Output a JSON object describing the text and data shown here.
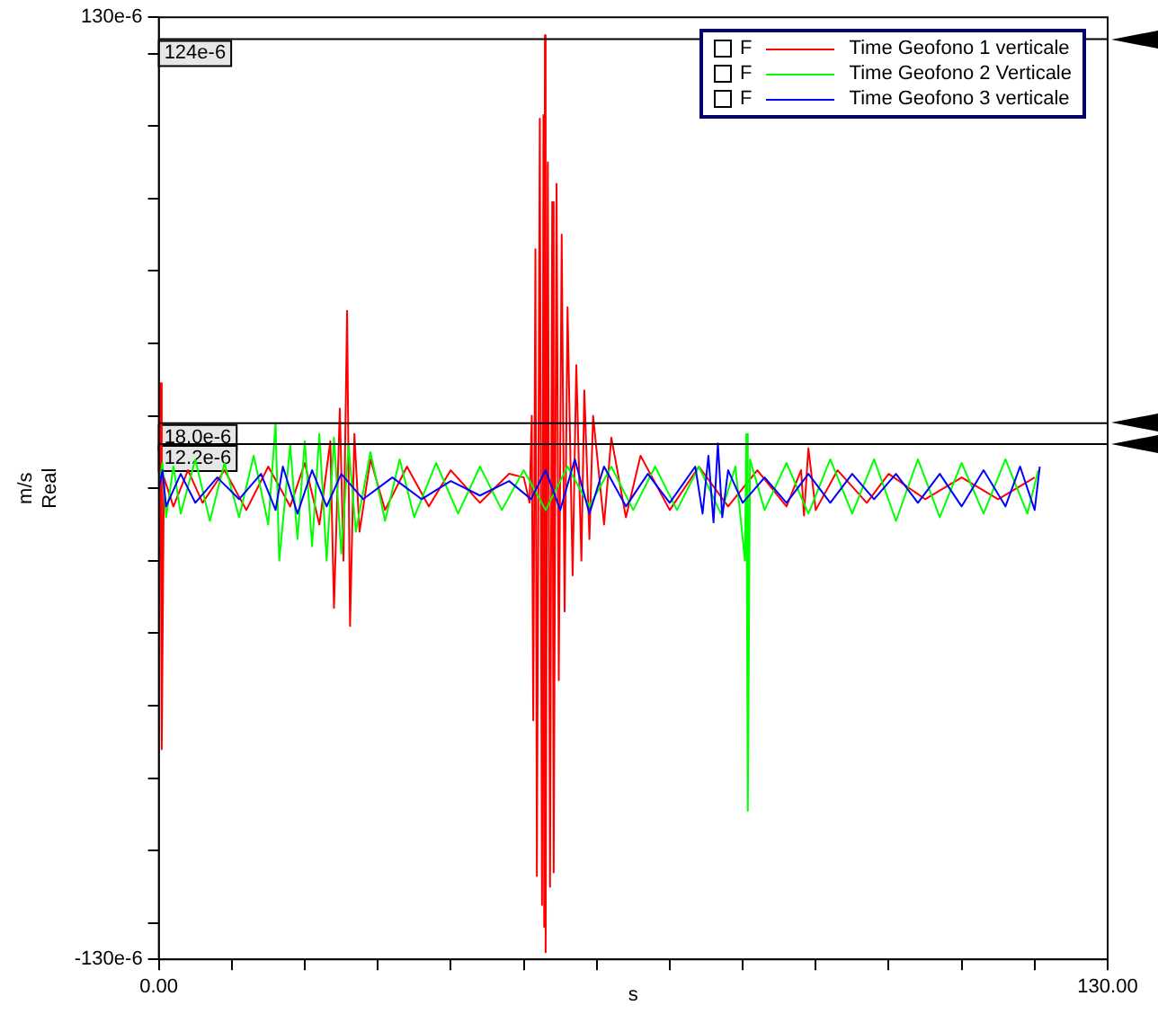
{
  "chart_data": {
    "type": "line",
    "xlabel": "s",
    "ylabel": "m/s\nReal",
    "xlim": [
      0,
      130
    ],
    "ylim": [
      -0.00013,
      0.00013
    ],
    "xticks": [
      {
        "value": 0,
        "label": "0.00"
      },
      {
        "value": 10,
        "label": null
      },
      {
        "value": 20,
        "label": null
      },
      {
        "value": 30,
        "label": null
      },
      {
        "value": 40,
        "label": null
      },
      {
        "value": 50,
        "label": null
      },
      {
        "value": 60,
        "label": null
      },
      {
        "value": 70,
        "label": null
      },
      {
        "value": 80,
        "label": null
      },
      {
        "value": 90,
        "label": null
      },
      {
        "value": 100,
        "label": null
      },
      {
        "value": 110,
        "label": null
      },
      {
        "value": 120,
        "label": null
      },
      {
        "value": 130,
        "label": "130.00"
      }
    ],
    "yticks": [
      {
        "value": -0.00013,
        "label": "-130e-6"
      },
      {
        "value": -0.00012,
        "label": null
      },
      {
        "value": -0.0001,
        "label": null
      },
      {
        "value": -8e-05,
        "label": null
      },
      {
        "value": -6e-05,
        "label": null
      },
      {
        "value": -4e-05,
        "label": null
      },
      {
        "value": -2e-05,
        "label": null
      },
      {
        "value": 0,
        "label": null
      },
      {
        "value": 2e-05,
        "label": null
      },
      {
        "value": 4e-05,
        "label": null
      },
      {
        "value": 6e-05,
        "label": null
      },
      {
        "value": 8e-05,
        "label": null
      },
      {
        "value": 0.0001,
        "label": null
      },
      {
        "value": 0.00012,
        "label": null
      },
      {
        "value": 0.00013,
        "label": "130e-6"
      }
    ],
    "legend": "top right",
    "line_style": "solid",
    "annotations": [
      "F",
      "F",
      "F"
    ],
    "ref_lines": [
      {
        "axis": "y",
        "value": 0.000124,
        "label": "124e-6",
        "color": "#000000"
      },
      {
        "axis": "y",
        "value": 1.8e-05,
        "label": "18.0e-6",
        "color": "#000000"
      },
      {
        "axis": "y",
        "value": 1.22e-05,
        "label": "12.2e-6",
        "color": "#000000"
      }
    ],
    "series": [
      {
        "name": "Time Geofono 1 verticale",
        "color": "#ff0000",
        "x": [
          0,
          0.2,
          0.4,
          0.7,
          2,
          4,
          6,
          9,
          12,
          15,
          18,
          20,
          22,
          23.5,
          24,
          24.8,
          25.3,
          25.8,
          26.2,
          26.8,
          27.5,
          29,
          31,
          34,
          37,
          40,
          44,
          48,
          50,
          50.8,
          51.1,
          51.3,
          51.6,
          51.8,
          52.2,
          52.5,
          52.7,
          52.8,
          52.9,
          53.0,
          53.3,
          53.6,
          53.9,
          54.1,
          54.5,
          54.8,
          55.2,
          55.6,
          56.0,
          56.7,
          57.2,
          57.9,
          58.3,
          59,
          59.5,
          61,
          62,
          64,
          66,
          70,
          74,
          78,
          82,
          86,
          88,
          88.4,
          89,
          90,
          93,
          97,
          100,
          105,
          110,
          115,
          120
        ],
        "values": [
          0,
          2.9e-05,
          -7.2e-05,
          3e-06,
          -5e-06,
          5e-06,
          -4e-06,
          5e-06,
          -6e-06,
          6e-06,
          -5e-06,
          7e-06,
          -1e-05,
          1.3e-05,
          -3.3e-05,
          2.2e-05,
          -2e-05,
          4.9e-05,
          -3.8e-05,
          1.5e-05,
          -1.2e-05,
          8e-06,
          -6e-06,
          6e-06,
          -5e-06,
          5e-06,
          -4e-06,
          4e-06,
          3e-06,
          -4e-06,
          2e-05,
          -6.4e-05,
          6.6e-05,
          -0.000107,
          0.000102,
          -0.000115,
          0.000103,
          -0.000121,
          0.000125,
          -0.000128,
          9e-05,
          -0.00011,
          7.9e-05,
          -0.000106,
          8.4e-05,
          -5.3e-05,
          7e-05,
          -3.4e-05,
          5e-05,
          -2.4e-05,
          3.4e-05,
          -2e-05,
          2.7e-05,
          -1.4e-05,
          2e-05,
          -1e-05,
          1.4e-05,
          -8e-06,
          9e-06,
          -6e-06,
          6e-06,
          -5e-06,
          5e-06,
          -5e-06,
          5e-06,
          -7.5e-06,
          1.1e-05,
          -6e-06,
          5e-06,
          -4e-06,
          4e-06,
          -3e-06,
          3e-06,
          -3e-06,
          3e-06
        ]
      },
      {
        "name": "Time Geofono 2 Verticale",
        "color": "#00ff00",
        "x": [
          0,
          0.5,
          1,
          2,
          3,
          5,
          7,
          9,
          11,
          13,
          15,
          16,
          16.5,
          18,
          19,
          20,
          21,
          22,
          23,
          24,
          25,
          26,
          27,
          29,
          31,
          33,
          35,
          38,
          41,
          44,
          47,
          50,
          53,
          56,
          59,
          62,
          65,
          68,
          71,
          74,
          77,
          79,
          80.3,
          80.5,
          80.7,
          81,
          83,
          86,
          89,
          92,
          95,
          98,
          101,
          104,
          107,
          110,
          113,
          116,
          119,
          120.5
        ],
        "values": [
          0,
          7e-06,
          -8e-06,
          6e-06,
          -7e-06,
          8e-06,
          -9e-06,
          7e-06,
          -8e-06,
          9e-06,
          -1e-05,
          1.8e-05,
          -2e-05,
          1.2e-05,
          -1.4e-05,
          1.3e-05,
          -1.6e-05,
          1.5e-05,
          -2e-05,
          1.4e-05,
          -1.8e-05,
          1.2e-05,
          -1.2e-05,
          1e-05,
          -9e-06,
          8e-06,
          -8e-06,
          7e-06,
          -7e-06,
          6e-06,
          -6e-06,
          5e-06,
          -6e-06,
          6e-06,
          -5e-06,
          6e-06,
          -6e-06,
          6e-06,
          -6e-06,
          6e-06,
          -7e-06,
          6e-06,
          -2e-05,
          1.5e-05,
          -8.9e-05,
          8e-06,
          -6e-06,
          7e-06,
          -7e-06,
          8e-06,
          -7e-06,
          8e-06,
          -9e-06,
          8e-06,
          -8e-06,
          7e-06,
          -7e-06,
          8e-06,
          -7e-06,
          5e-06
        ]
      },
      {
        "name": "Time Geofono 3 verticale",
        "color": "#0000ff",
        "x": [
          0,
          0.5,
          1,
          3,
          5,
          8,
          11,
          14,
          16,
          17,
          19,
          21,
          23,
          25,
          28,
          32,
          36,
          40,
          44,
          48,
          51,
          53,
          55,
          57,
          59,
          61,
          64,
          67,
          70,
          73.5,
          74.5,
          75.3,
          76,
          76.6,
          77.2,
          78,
          80,
          83,
          86,
          89,
          92,
          95,
          98,
          101,
          104,
          107,
          110,
          113,
          116,
          118,
          120,
          120.7
        ],
        "values": [
          0,
          5e-06,
          -5e-06,
          4e-06,
          -4e-06,
          3e-06,
          -3e-06,
          4e-06,
          -6e-06,
          6e-06,
          -7e-06,
          5e-06,
          -5e-06,
          4e-06,
          -3e-06,
          3e-06,
          -3e-06,
          2e-06,
          -2e-06,
          2e-06,
          -3e-06,
          5e-06,
          -6e-06,
          8e-06,
          -7e-06,
          6e-06,
          -5e-06,
          4e-06,
          -4e-06,
          6e-06,
          -7e-06,
          9e-06,
          -9.4e-06,
          1.24e-05,
          -8e-06,
          5e-06,
          -4e-06,
          3e-06,
          -4e-06,
          4e-06,
          -4e-06,
          4e-06,
          -3e-06,
          4e-06,
          -4e-06,
          4e-06,
          -5e-06,
          5e-06,
          -5e-06,
          6e-06,
          -6e-06,
          6e-06
        ]
      }
    ]
  }
}
